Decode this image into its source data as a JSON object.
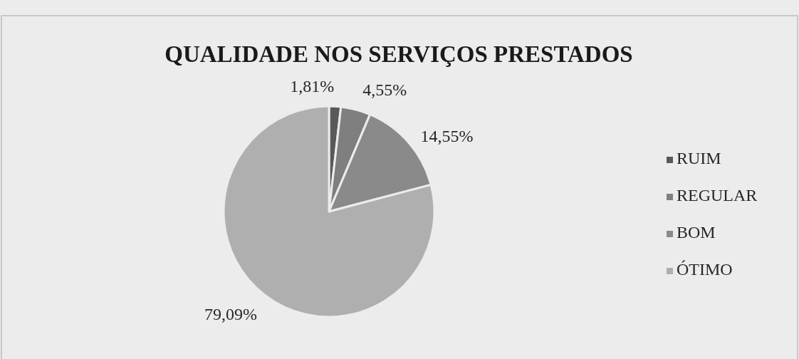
{
  "chart_data": {
    "type": "pie",
    "title": "QUALIDADE NOS SERVIÇOS PRESTADOS",
    "categories": [
      "RUIM",
      "REGULAR",
      "BOM",
      "ÓTIMO"
    ],
    "values": [
      1.81,
      4.55,
      14.55,
      79.09
    ],
    "colors": [
      "#595959",
      "#7f7f7f",
      "#8a8a8a",
      "#afafaf"
    ],
    "value_labels": [
      "1,81%",
      "4,55%",
      "14,55%",
      "79,09%"
    ],
    "legend": "right"
  }
}
